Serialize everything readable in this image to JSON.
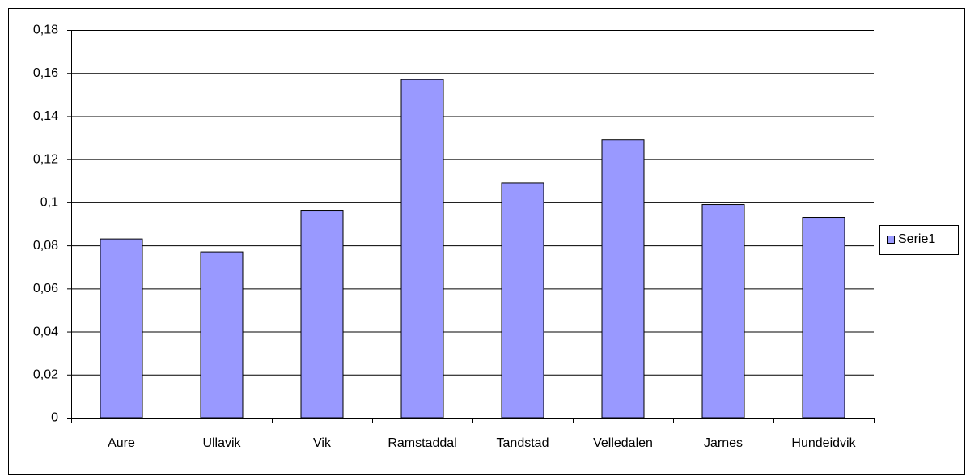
{
  "chart_data": {
    "type": "bar",
    "categories": [
      "Aure",
      "Ullavik",
      "Vik",
      "Ramstaddal",
      "Tandstad",
      "Velledalen",
      "Jarnes",
      "Hundeidvik"
    ],
    "series": [
      {
        "name": "Serie1",
        "color": "#9999ff",
        "values": [
          0.083,
          0.077,
          0.096,
          0.157,
          0.109,
          0.129,
          0.099,
          0.093
        ]
      }
    ],
    "ylim": [
      0,
      0.18
    ],
    "yticks": [
      0,
      {
        "value": 0.02,
        "label": "0,02"
      },
      {
        "value": 0.04,
        "label": "0,04"
      },
      {
        "value": 0.06,
        "label": "0,06"
      },
      {
        "value": 0.08,
        "label": "0,08"
      },
      {
        "value": 0.1,
        "label": "0,1"
      },
      {
        "value": 0.12,
        "label": "0,12"
      },
      {
        "value": 0.14,
        "label": "0,14"
      },
      {
        "value": 0.16,
        "label": "0,16"
      },
      {
        "value": 0.18,
        "label": "0,18"
      }
    ],
    "grid": true,
    "legend": "right"
  }
}
